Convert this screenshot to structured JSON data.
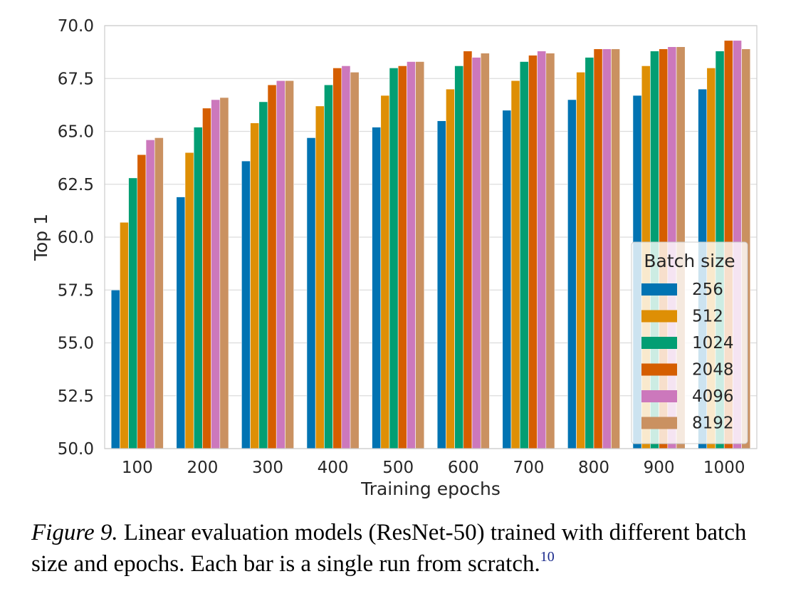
{
  "chart_data": {
    "type": "bar",
    "xlabel": "Training epochs",
    "ylabel": "Top 1",
    "ylim": [
      50.0,
      70.0
    ],
    "yticks": [
      "50.0",
      "52.5",
      "55.0",
      "57.5",
      "60.0",
      "62.5",
      "65.0",
      "67.5",
      "70.0"
    ],
    "categories": [
      "100",
      "200",
      "300",
      "400",
      "500",
      "600",
      "700",
      "800",
      "900",
      "1000"
    ],
    "grid": true,
    "legend": {
      "title": "Batch size",
      "placement": "right"
    },
    "series": [
      {
        "name": "256",
        "color": "#0173b2",
        "values": [
          57.5,
          61.9,
          63.6,
          64.7,
          65.2,
          65.5,
          66.0,
          66.5,
          66.7,
          67.0
        ]
      },
      {
        "name": "512",
        "color": "#de8f05",
        "values": [
          60.7,
          64.0,
          65.4,
          66.2,
          66.7,
          67.0,
          67.4,
          67.8,
          68.1,
          68.0
        ]
      },
      {
        "name": "1024",
        "color": "#029e73",
        "values": [
          62.8,
          65.2,
          66.4,
          67.2,
          68.0,
          68.1,
          68.3,
          68.5,
          68.8,
          68.8
        ]
      },
      {
        "name": "2048",
        "color": "#d55e00",
        "values": [
          63.9,
          66.1,
          67.2,
          68.0,
          68.1,
          68.8,
          68.6,
          68.9,
          68.9,
          69.3
        ]
      },
      {
        "name": "4096",
        "color": "#cc78bc",
        "values": [
          64.6,
          66.5,
          67.4,
          68.1,
          68.3,
          68.5,
          68.8,
          68.9,
          69.0,
          69.3
        ]
      },
      {
        "name": "8192",
        "color": "#ca9161",
        "values": [
          64.7,
          66.6,
          67.4,
          67.8,
          68.3,
          68.7,
          68.7,
          68.9,
          69.0,
          68.9
        ]
      }
    ]
  },
  "caption": {
    "label": "Figure 9.",
    "text": " Linear evaluation models (ResNet-50) trained with different batch size and epochs. Each bar is a single run from scratch.",
    "footnote": "10"
  }
}
